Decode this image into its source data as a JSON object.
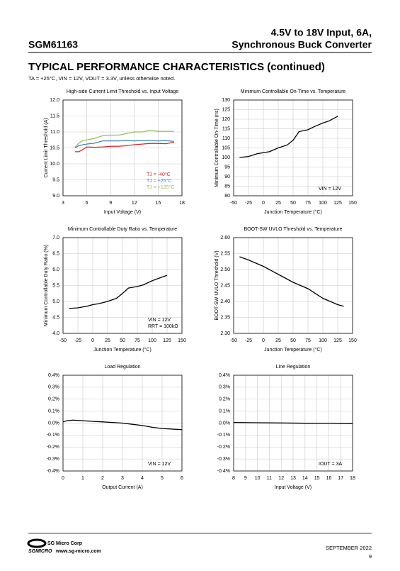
{
  "header": {
    "title_line1": "4.5V to 18V Input, 6A,",
    "title_line2": "Synchronous Buck Converter",
    "part": "SGM61163"
  },
  "section": {
    "title": "TYPICAL PERFORMANCE CHARACTERISTICS (continued)",
    "conditions": "TA = +25°C, VIN = 12V, VOUT = 3.3V, unless otherwise noted."
  },
  "chart_data": [
    {
      "type": "line",
      "title": "High-side Current Limit Threshold vs. Input Voltage",
      "x_label": "Input Voltage (V)",
      "y_label": "Current Limit Threshold (A)",
      "xlim": [
        3,
        18
      ],
      "xticks": [
        3,
        6,
        9,
        12,
        15,
        18
      ],
      "ylim": [
        9,
        12
      ],
      "yticks": [
        {
          "value": 9,
          "label": "9.0"
        },
        9.5,
        {
          "value": 10,
          "label": "10.0"
        },
        10.5,
        {
          "value": 11,
          "label": "11.0"
        },
        11.5,
        {
          "value": 12,
          "label": "12.0"
        }
      ],
      "grid": true,
      "x": [
        4.5,
        5,
        5.5,
        6,
        7,
        8,
        9,
        10,
        11,
        12,
        13,
        14,
        15,
        16,
        17
      ],
      "series": [
        {
          "name": "TJ = -40°C",
          "color": "#d9262b",
          "values": [
            10.38,
            10.38,
            10.45,
            10.53,
            10.52,
            10.53,
            10.55,
            10.55,
            10.57,
            10.6,
            10.62,
            10.64,
            10.64,
            10.63,
            10.68
          ]
        },
        {
          "name": "TJ = +25°C",
          "color": "#3a86c8",
          "values": [
            10.5,
            10.57,
            10.6,
            10.62,
            10.65,
            10.72,
            10.72,
            10.72,
            10.73,
            10.72,
            10.73,
            10.73,
            10.72,
            10.73,
            10.7
          ]
        },
        {
          "name": "TJ = +125°C",
          "color": "#9bbb59",
          "values": [
            10.52,
            10.65,
            10.73,
            10.75,
            10.8,
            10.88,
            10.9,
            10.9,
            10.95,
            11.0,
            11.0,
            11.05,
            11.02,
            11.02,
            11.02
          ]
        }
      ]
    },
    {
      "type": "line",
      "title": "Minimum Controllable On-Time vs. Temperature",
      "x_label": "Junction Temperature (°C)",
      "y_label": "Minimum Controllable On-Time (ns)",
      "xlim": [
        -50,
        150
      ],
      "xticks": [
        -50,
        -25,
        0,
        25,
        50,
        75,
        100,
        125,
        150
      ],
      "ylim": [
        80,
        130
      ],
      "yticks": [
        80,
        85,
        90,
        95,
        100,
        105,
        110,
        115,
        120,
        125,
        130
      ],
      "grid": true,
      "x": [
        -40,
        -25,
        -10,
        0,
        10,
        25,
        40,
        50,
        60,
        75,
        85,
        100,
        110,
        125
      ],
      "color": "#000000",
      "values": [
        100,
        100.5,
        102,
        102.5,
        103,
        105,
        106.5,
        109,
        113.5,
        114.5,
        116,
        118,
        119,
        121.5
      ],
      "annotations": [
        "VIN = 12V"
      ]
    },
    {
      "type": "line",
      "title": "Minimum Controllable Duty Ratio vs. Temperature",
      "x_label": "Junction Temperature (°C)",
      "y_label": "Minimum Controllable Duty Ratio (%)",
      "xlim": [
        -50,
        150
      ],
      "xticks": [
        -50,
        -25,
        0,
        25,
        50,
        75,
        100,
        125,
        150
      ],
      "ylim": [
        4,
        7
      ],
      "yticks": [
        {
          "value": 4,
          "label": "4.0"
        },
        4.5,
        {
          "value": 5,
          "label": "5.0"
        },
        5.5,
        {
          "value": 6,
          "label": "6.0"
        },
        6.5,
        {
          "value": 7,
          "label": "7.0"
        }
      ],
      "grid": true,
      "x": [
        -40,
        -25,
        -10,
        0,
        10,
        25,
        40,
        50,
        60,
        75,
        85,
        100,
        110,
        125
      ],
      "color": "#000000",
      "values": [
        4.78,
        4.8,
        4.85,
        4.9,
        4.93,
        5.0,
        5.1,
        5.25,
        5.42,
        5.47,
        5.52,
        5.65,
        5.72,
        5.82
      ],
      "annotations": [
        "VIN = 12V",
        "RRT = 100kΩ"
      ]
    },
    {
      "type": "line",
      "title": "BOOT-SW UVLO Threshold vs. Temperature",
      "x_label": "Junction Temperature (°C)",
      "y_label": "BOOT-SW UVLO Threshold (V)",
      "xlim": [
        -50,
        150
      ],
      "xticks": [
        -50,
        -25,
        0,
        25,
        50,
        75,
        100,
        125,
        150
      ],
      "ylim": [
        2.3,
        2.6
      ],
      "yticks": [
        {
          "value": 2.3,
          "label": "2.30"
        },
        2.35,
        {
          "value": 2.4,
          "label": "2.40"
        },
        2.45,
        {
          "value": 2.5,
          "label": "2.50"
        },
        2.55,
        {
          "value": 2.6,
          "label": "2.60"
        }
      ],
      "grid": true,
      "x": [
        -40,
        -25,
        0,
        25,
        50,
        75,
        100,
        125,
        135
      ],
      "color": "#000000",
      "values": [
        2.54,
        2.53,
        2.51,
        2.485,
        2.46,
        2.44,
        2.41,
        2.39,
        2.385
      ]
    },
    {
      "type": "line",
      "title": "Load Regulation",
      "x_label": "Output Current (A)",
      "xlim": [
        0,
        6
      ],
      "xticks": [
        0,
        1,
        2,
        3,
        4,
        5,
        6
      ],
      "ylim": [
        -0.4,
        0.4
      ],
      "yticks": [
        {
          "value": -0.4,
          "label": "-0.4%"
        },
        {
          "value": -0.3,
          "label": "-0.3%"
        },
        {
          "value": -0.2,
          "label": "-0.2%"
        },
        {
          "value": -0.1,
          "label": "-0.1%"
        },
        {
          "value": 0,
          "label": "0.0%"
        },
        {
          "value": 0.1,
          "label": "0.1%"
        },
        {
          "value": 0.2,
          "label": "0.2%"
        },
        {
          "value": 0.3,
          "label": "0.3%"
        },
        {
          "value": 0.4,
          "label": "0.4%"
        }
      ],
      "grid": true,
      "x": [
        0,
        0.2,
        0.5,
        1,
        1.5,
        2,
        2.5,
        3,
        3.5,
        4,
        4.5,
        5,
        5.5,
        6
      ],
      "color": "#000000",
      "values": [
        0.01,
        0.02,
        0.025,
        0.02,
        0.015,
        0.01,
        0.005,
        0,
        -0.01,
        -0.02,
        -0.035,
        -0.045,
        -0.05,
        -0.055
      ],
      "annotations": [
        "VIN = 12V"
      ]
    },
    {
      "type": "line",
      "title": "Line Regulation",
      "x_label": "Input Voltage (V)",
      "xlim": [
        8,
        18
      ],
      "xticks": [
        8,
        9,
        10,
        11,
        12,
        13,
        14,
        15,
        16,
        17,
        18
      ],
      "ylim": [
        -0.4,
        0.4
      ],
      "yticks": [
        {
          "value": -0.4,
          "label": "-0.4%"
        },
        {
          "value": -0.3,
          "label": "-0.3%"
        },
        {
          "value": -0.2,
          "label": "-0.2%"
        },
        {
          "value": -0.1,
          "label": "-0.1%"
        },
        {
          "value": 0,
          "label": "0.0%"
        },
        {
          "value": 0.1,
          "label": "0.1%"
        },
        {
          "value": 0.2,
          "label": "0.2%"
        },
        {
          "value": 0.3,
          "label": "0.3%"
        },
        {
          "value": 0.4,
          "label": "0.4%"
        }
      ],
      "grid": true,
      "x": [
        8,
        10,
        12,
        14,
        16,
        18
      ],
      "color": "#000000",
      "values": [
        0.005,
        0.003,
        0.001,
        -0.001,
        -0.002,
        -0.004
      ],
      "annotations": [
        "IOUT = 3A"
      ]
    }
  ],
  "footer": {
    "company": "SG Micro Corp",
    "website": "www.sg-micro.com",
    "logo": "SGMICRO",
    "date": "SEPTEMBER 2022",
    "page": "9"
  }
}
